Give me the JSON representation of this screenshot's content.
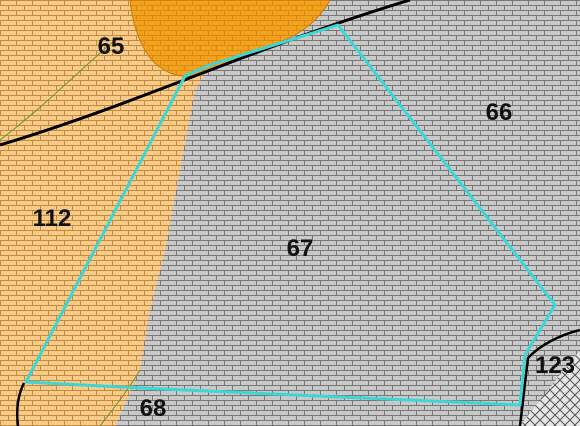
{
  "map": {
    "zones": [
      {
        "id": "z65",
        "label": "65",
        "kind": "orange-dome"
      },
      {
        "id": "z66",
        "label": "66",
        "kind": "gray-brick"
      },
      {
        "id": "z67",
        "label": "67",
        "kind": "gray-brick"
      },
      {
        "id": "z68",
        "label": "68",
        "kind": "gray-brick"
      },
      {
        "id": "z112",
        "label": "112",
        "kind": "tan-brick"
      },
      {
        "id": "z123",
        "label": "123",
        "kind": "crosshatch"
      }
    ],
    "colors": {
      "tan_fill": "#f7cc8b",
      "tan_brick_line": "#c68a3c",
      "gray_fill": "#c9c9c9",
      "gray_brick_line": "#777777",
      "orange_dome": "#f2a21d",
      "orange_dome_line": "#c77a10",
      "crosshatch_fill": "#e6e6e6",
      "crosshatch_line": "#555555",
      "selection_outline": "#3dd6d6",
      "road_line": "#000000",
      "thin_boundary": "#6b8f3a"
    },
    "highlighted_zone": "67"
  }
}
